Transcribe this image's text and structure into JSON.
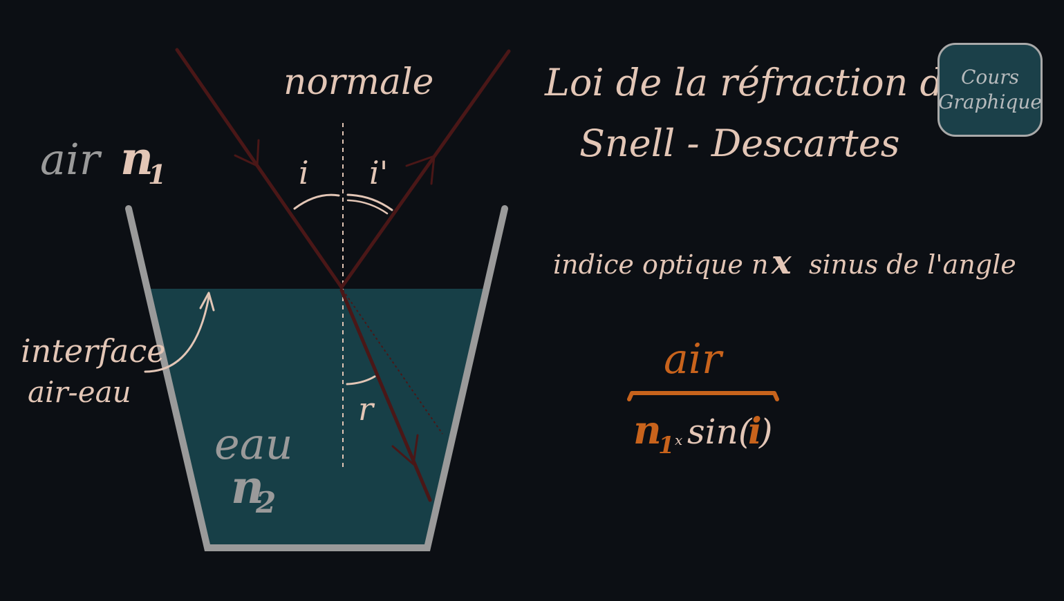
{
  "title": {
    "line1": "Loi de la réfraction de",
    "line2": "Snell - Descartes"
  },
  "logo": {
    "line1": "Cours",
    "line2": "Graphique"
  },
  "labels": {
    "normale": "normale",
    "air": "air",
    "n1_base": "n",
    "n1_sub": "1",
    "eau": "eau",
    "n2_base": "n",
    "n2_sub": "2",
    "interface_line1": "interface",
    "interface_line2": "air-eau",
    "angle_i": "i",
    "angle_i_prime": "i'",
    "angle_r": "r"
  },
  "formula": {
    "description_part1": "indice optique n",
    "description_times": "x",
    "description_part2": "sinus de l'angle",
    "brace_label": "air",
    "n_base": "n",
    "n_sub": "1",
    "times": "x",
    "sin_open": "sin(",
    "sin_arg": "i",
    "sin_close": ")"
  },
  "colors": {
    "background": "#0c0f14",
    "water": "#173f47",
    "glass": "#9a9a9a",
    "ray": "#4a1717",
    "label": "#e3c6b6",
    "accent": "#c8631c"
  }
}
